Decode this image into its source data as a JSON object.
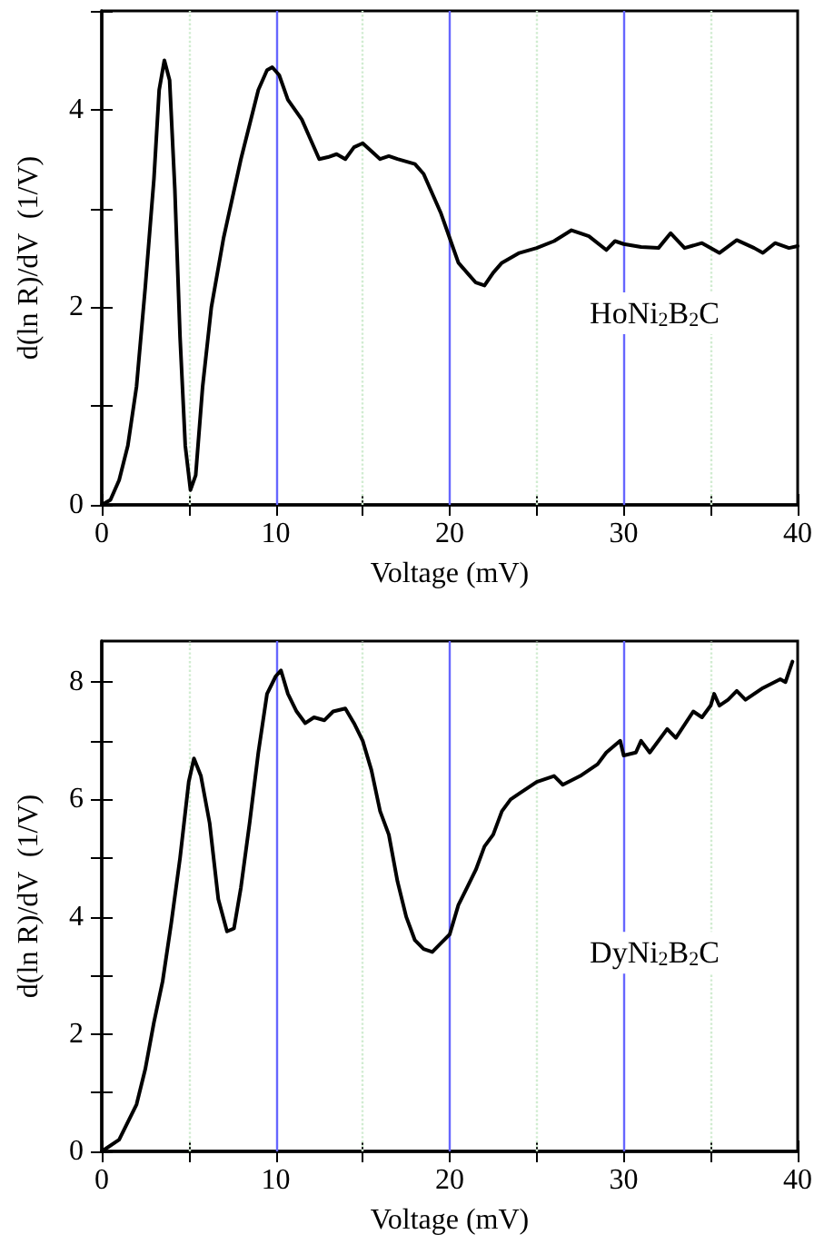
{
  "chart_data": [
    {
      "type": "line",
      "xlabel": "Voltage (mV)",
      "ylabel": "d(ln R)/dV  (1/V)",
      "annotations": [
        "HoNi$_{2}$B$_{2}$C"
      ],
      "grid": false,
      "marker": "none",
      "line_style": "solid",
      "xlim": [
        0,
        40
      ],
      "xticks": [
        0,
        {
          "value": 5,
          "label": null
        },
        10,
        {
          "value": 15,
          "label": null
        },
        20,
        {
          "value": 25,
          "label": null
        },
        30,
        {
          "value": 35,
          "label": null
        },
        40
      ],
      "ylim": [
        0,
        5
      ],
      "yticks": [
        0,
        {
          "value": 1,
          "label": null
        },
        2,
        {
          "value": 3,
          "label": null
        },
        4,
        {
          "value": 5,
          "label": null
        }
      ],
      "ref_lines": [
        {
          "axis": "x",
          "value": 5,
          "color": "#d0ecd0",
          "line_style": "dotted"
        },
        {
          "axis": "x",
          "value": 10,
          "color": "#6666ff",
          "line_style": "solid"
        },
        {
          "axis": "x",
          "value": 15,
          "color": "#d0ecd0",
          "line_style": "dotted"
        },
        {
          "axis": "x",
          "value": 20,
          "color": "#6666ff",
          "line_style": "solid"
        },
        {
          "axis": "x",
          "value": 25,
          "color": "#d0ecd0",
          "line_style": "dotted"
        },
        {
          "axis": "x",
          "value": 30,
          "color": "#6666ff",
          "line_style": "solid"
        },
        {
          "axis": "x",
          "value": 35,
          "color": "#d0ecd0",
          "line_style": "dotted"
        }
      ],
      "series": [
        {
          "color": "#000000",
          "x": [
            0,
            0.5,
            1,
            1.5,
            2,
            2.5,
            3,
            3.3,
            3.6,
            3.9,
            4.2,
            4.5,
            4.8,
            5.1,
            5.4,
            5.8,
            6.3,
            7,
            8,
            9,
            9.5,
            9.8,
            10.2,
            10.7,
            11.5,
            12,
            12.5,
            13,
            13.5,
            14,
            14.5,
            15,
            15.5,
            16,
            16.5,
            17,
            18,
            18.5,
            19,
            19.5,
            20,
            20.5,
            21,
            21.5,
            22,
            22.5,
            23,
            24,
            25,
            26,
            27,
            28,
            29,
            29.5,
            30,
            31,
            32,
            32.7,
            33.5,
            34.5,
            35.5,
            36.5,
            37.5,
            38,
            38.7,
            39.5,
            40
          ],
          "values": [
            0,
            0.05,
            0.25,
            0.6,
            1.2,
            2.2,
            3.3,
            4.2,
            4.5,
            4.3,
            3.2,
            1.7,
            0.6,
            0.15,
            0.3,
            1.2,
            2.0,
            2.7,
            3.5,
            4.2,
            4.4,
            4.43,
            4.35,
            4.1,
            3.9,
            3.7,
            3.5,
            3.52,
            3.55,
            3.5,
            3.62,
            3.66,
            3.58,
            3.5,
            3.53,
            3.5,
            3.45,
            3.35,
            3.15,
            2.95,
            2.7,
            2.45,
            2.35,
            2.25,
            2.22,
            2.35,
            2.45,
            2.55,
            2.6,
            2.67,
            2.78,
            2.72,
            2.58,
            2.67,
            2.64,
            2.61,
            2.6,
            2.75,
            2.6,
            2.65,
            2.55,
            2.68,
            2.6,
            2.55,
            2.65,
            2.6,
            2.62
          ]
        }
      ]
    },
    {
      "type": "line",
      "xlabel": "Voltage (mV)",
      "ylabel": "d(ln R)/dV  (1/V)",
      "annotations": [
        "DyNi$_{2}$B$_{2}$C"
      ],
      "grid": false,
      "marker": "none",
      "line_style": "solid",
      "xlim": [
        0,
        40
      ],
      "xticks": [
        0,
        {
          "value": 5,
          "label": null
        },
        10,
        {
          "value": 15,
          "label": null
        },
        20,
        {
          "value": 25,
          "label": null
        },
        30,
        {
          "value": 35,
          "label": null
        },
        40
      ],
      "ylim": [
        0,
        8.7
      ],
      "yticks": [
        0,
        {
          "value": 1,
          "label": null
        },
        2,
        {
          "value": 3,
          "label": null
        },
        4,
        {
          "value": 5,
          "label": null
        },
        6,
        {
          "value": 7,
          "label": null
        },
        8
      ],
      "ref_lines": [
        {
          "axis": "x",
          "value": 5,
          "color": "#d0ecd0",
          "line_style": "dotted"
        },
        {
          "axis": "x",
          "value": 10,
          "color": "#6666ff",
          "line_style": "solid"
        },
        {
          "axis": "x",
          "value": 15,
          "color": "#d0ecd0",
          "line_style": "dotted"
        },
        {
          "axis": "x",
          "value": 20,
          "color": "#6666ff",
          "line_style": "solid"
        },
        {
          "axis": "x",
          "value": 25,
          "color": "#d0ecd0",
          "line_style": "dotted"
        },
        {
          "axis": "x",
          "value": 30,
          "color": "#6666ff",
          "line_style": "solid"
        },
        {
          "axis": "x",
          "value": 35,
          "color": "#d0ecd0",
          "line_style": "dotted"
        }
      ],
      "series": [
        {
          "color": "#000000",
          "x": [
            0,
            1,
            2,
            2.5,
            3,
            3.5,
            4,
            4.5,
            5,
            5.3,
            5.7,
            6.2,
            6.7,
            7.2,
            7.6,
            8,
            8.5,
            9,
            9.5,
            10,
            10.3,
            10.7,
            11.2,
            11.7,
            12.2,
            12.8,
            13.3,
            14,
            14.5,
            15,
            15.5,
            16,
            16.5,
            17,
            17.5,
            18,
            18.5,
            19,
            19.5,
            20,
            20.5,
            21,
            21.5,
            22,
            22.5,
            23,
            23.5,
            24,
            25,
            26,
            26.5,
            27.5,
            28.5,
            29,
            29.8,
            30,
            30.7,
            31,
            31.5,
            32.5,
            33,
            34,
            34.5,
            35,
            35.2,
            35.5,
            36,
            36.5,
            37,
            38,
            39,
            39.3,
            39.7
          ],
          "values": [
            0,
            0.2,
            0.8,
            1.4,
            2.2,
            2.9,
            3.9,
            5.0,
            6.3,
            6.7,
            6.4,
            5.6,
            4.3,
            3.75,
            3.8,
            4.5,
            5.6,
            6.8,
            7.8,
            8.1,
            8.2,
            7.8,
            7.5,
            7.3,
            7.4,
            7.35,
            7.5,
            7.55,
            7.3,
            7.0,
            6.5,
            5.8,
            5.4,
            4.6,
            4.0,
            3.6,
            3.45,
            3.4,
            3.55,
            3.7,
            4.2,
            4.5,
            4.8,
            5.2,
            5.4,
            5.8,
            6.0,
            6.1,
            6.3,
            6.4,
            6.25,
            6.4,
            6.6,
            6.8,
            7.0,
            6.75,
            6.8,
            7.0,
            6.8,
            7.2,
            7.05,
            7.5,
            7.4,
            7.6,
            7.8,
            7.6,
            7.7,
            7.85,
            7.7,
            7.9,
            8.05,
            8.0,
            8.35
          ]
        }
      ]
    }
  ]
}
